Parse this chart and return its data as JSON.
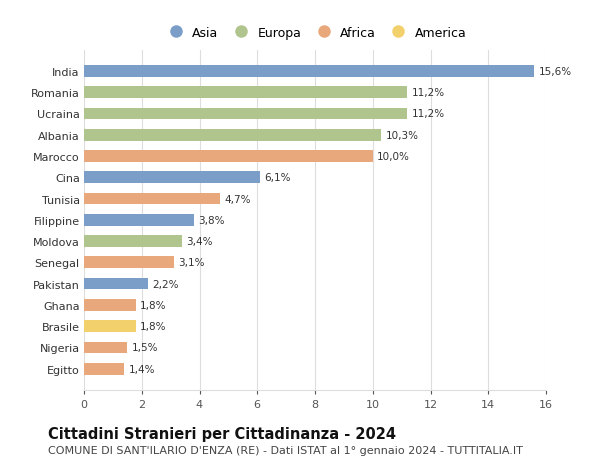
{
  "categories": [
    "India",
    "Romania",
    "Ucraina",
    "Albania",
    "Marocco",
    "Cina",
    "Tunisia",
    "Filippine",
    "Moldova",
    "Senegal",
    "Pakistan",
    "Ghana",
    "Brasile",
    "Nigeria",
    "Egitto"
  ],
  "values": [
    15.6,
    11.2,
    11.2,
    10.3,
    10.0,
    6.1,
    4.7,
    3.8,
    3.4,
    3.1,
    2.2,
    1.8,
    1.8,
    1.5,
    1.4
  ],
  "labels": [
    "15,6%",
    "11,2%",
    "11,2%",
    "10,3%",
    "10,0%",
    "6,1%",
    "4,7%",
    "3,8%",
    "3,4%",
    "3,1%",
    "2,2%",
    "1,8%",
    "1,8%",
    "1,5%",
    "1,4%"
  ],
  "continents": [
    "Asia",
    "Europa",
    "Europa",
    "Europa",
    "Africa",
    "Asia",
    "Africa",
    "Asia",
    "Europa",
    "Africa",
    "Asia",
    "Africa",
    "America",
    "Africa",
    "Africa"
  ],
  "colors": {
    "Asia": "#7b9ec9",
    "Europa": "#b0c48e",
    "Africa": "#e8a87c",
    "America": "#f2d06b"
  },
  "xlim": [
    0,
    16
  ],
  "xticks": [
    0,
    2,
    4,
    6,
    8,
    10,
    12,
    14,
    16
  ],
  "title": "Cittadini Stranieri per Cittadinanza - 2024",
  "subtitle": "COMUNE DI SANT'ILARIO D'ENZA (RE) - Dati ISTAT al 1° gennaio 2024 - TUTTITALIA.IT",
  "background_color": "#ffffff",
  "grid_color": "#dddddd",
  "bar_height": 0.55,
  "title_fontsize": 10.5,
  "subtitle_fontsize": 8,
  "label_fontsize": 7.5,
  "tick_fontsize": 8,
  "legend_fontsize": 9
}
